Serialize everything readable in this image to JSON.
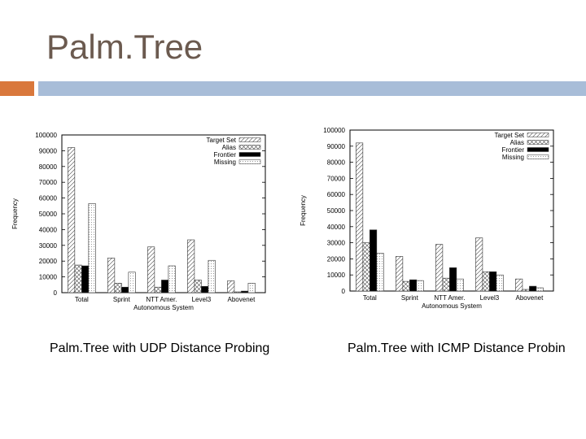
{
  "slide": {
    "title": "Palm.Tree",
    "caption_left": "Palm.Tree with UDP Distance Probing",
    "caption_right": "Palm.Tree with ICMP Distance Probin",
    "colors": {
      "title": "#6b5a4f",
      "accent_orange": "#d9783c",
      "accent_blue": "#a8bdd8"
    }
  },
  "chart_data": [
    {
      "type": "bar",
      "xlabel": "Autonomous System",
      "ylabel": "Frequency",
      "ylim": [
        0,
        100000
      ],
      "yticks": [
        0,
        10000,
        20000,
        30000,
        40000,
        50000,
        60000,
        70000,
        80000,
        90000,
        100000
      ],
      "legend_position": "top-right",
      "categories": [
        "Total",
        "Sprint",
        "NTT Amer.",
        "Level3",
        "Abovenet"
      ],
      "series": [
        {
          "name": "Target Set",
          "pattern": "diag",
          "values": [
            92000,
            22000,
            29000,
            33500,
            7500
          ]
        },
        {
          "name": "Alias",
          "pattern": "cross",
          "values": [
            17500,
            6000,
            3500,
            8000,
            500
          ]
        },
        {
          "name": "Frontier",
          "pattern": "solid",
          "values": [
            17000,
            3500,
            8000,
            4000,
            1000
          ]
        },
        {
          "name": "Missing",
          "pattern": "dots",
          "values": [
            56500,
            13000,
            17000,
            20500,
            6000
          ]
        }
      ]
    },
    {
      "type": "bar",
      "xlabel": "Autonomous System",
      "ylabel": "Frequency",
      "ylim": [
        0,
        100000
      ],
      "yticks": [
        0,
        10000,
        20000,
        30000,
        40000,
        50000,
        60000,
        70000,
        80000,
        90000,
        100000
      ],
      "legend_position": "top-right",
      "categories": [
        "Total",
        "Sprint",
        "NTT Amer.",
        "Level3",
        "Abovenet"
      ],
      "series": [
        {
          "name": "Target Set",
          "pattern": "diag",
          "values": [
            92000,
            21500,
            29000,
            33000,
            7500
          ]
        },
        {
          "name": "Alias",
          "pattern": "cross",
          "values": [
            30000,
            6000,
            8000,
            12000,
            1000
          ]
        },
        {
          "name": "Frontier",
          "pattern": "solid",
          "values": [
            38000,
            7000,
            14500,
            12000,
            3000
          ]
        },
        {
          "name": "Missing",
          "pattern": "dots",
          "values": [
            23500,
            6500,
            7500,
            10000,
            2000
          ]
        }
      ]
    }
  ]
}
